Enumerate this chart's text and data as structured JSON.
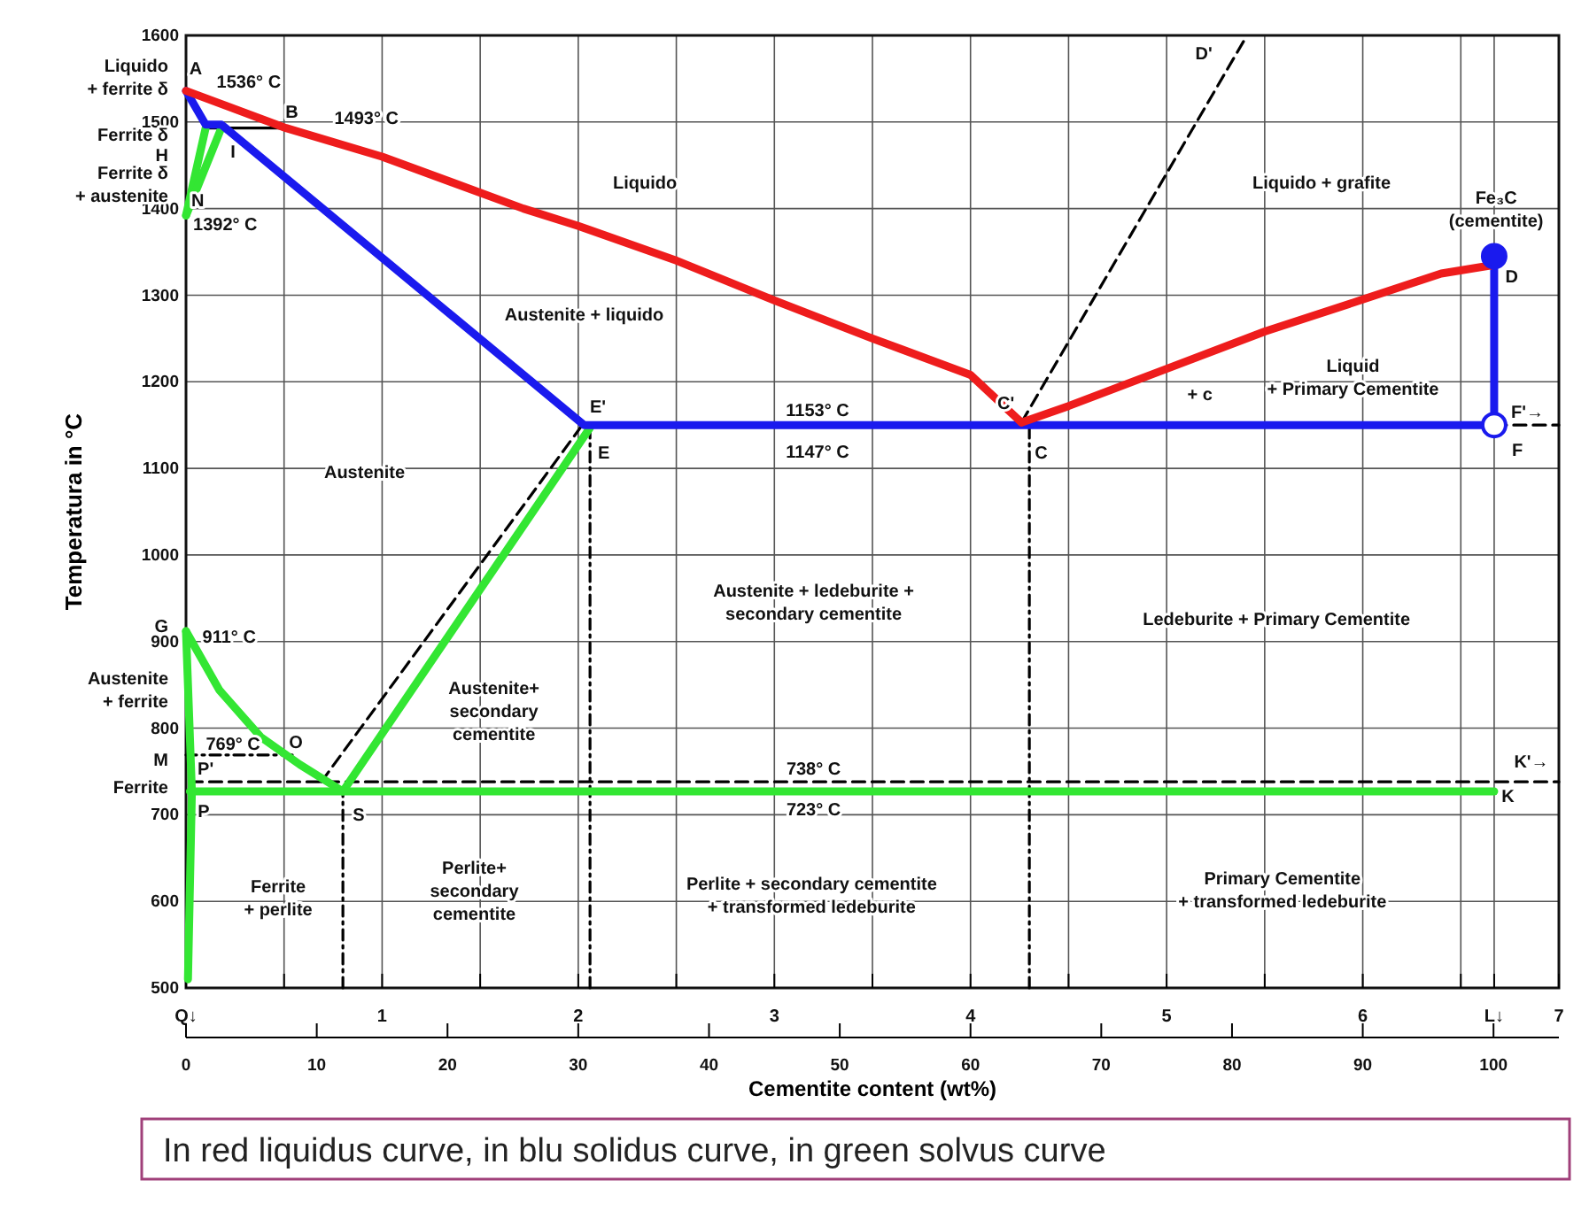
{
  "chart_data": {
    "type": "line",
    "ylabel": "Temperatura in °C",
    "x2label": "Cementite content (wt%)",
    "xlim": [
      0,
      7
    ],
    "ylim": [
      500,
      1600
    ],
    "xticks": [
      {
        "value": 0,
        "label": "Q↓"
      },
      {
        "value": 0.5,
        "label": null
      },
      1,
      {
        "value": 1.5,
        "label": null
      },
      2,
      {
        "value": 2.5,
        "label": null
      },
      3,
      {
        "value": 3.5,
        "label": null
      },
      4,
      {
        "value": 4.5,
        "label": null
      },
      5,
      {
        "value": 5.5,
        "label": null
      },
      6,
      {
        "value": 6.5,
        "label": null
      },
      {
        "value": 6.67,
        "label": "L↓"
      },
      7
    ],
    "yticks": [
      500,
      600,
      700,
      800,
      900,
      1000,
      1100,
      1200,
      1300,
      1400,
      1500,
      1600
    ],
    "x2lim": [
      0,
      105
    ],
    "x2ticks": [
      0,
      10,
      20,
      30,
      40,
      50,
      60,
      70,
      80,
      90,
      100
    ],
    "grid": true,
    "series": [
      {
        "color": "#000000",
        "line_style": "dashed",
        "x": [
          0.02,
          7
        ],
        "values": [
          738,
          738
        ]
      },
      {
        "color": "#000000",
        "line_style": "dashed",
        "x": [
          0.69,
          2.03
        ],
        "values": [
          738,
          1153
        ]
      },
      {
        "color": "#000000",
        "line_style": "dashed",
        "x": [
          4.26,
          5.41
        ],
        "values": [
          1153,
          1600
        ]
      },
      {
        "color": "#000000",
        "line_style": "dashed",
        "x": [
          6.67,
          7
        ],
        "values": [
          1150,
          1150
        ]
      },
      {
        "color": "#000000",
        "line_style": "dotted",
        "x": [
          0.8,
          0.8
        ],
        "values": [
          500,
          727
        ]
      },
      {
        "color": "#000000",
        "line_style": "dotted",
        "x": [
          2.06,
          2.06
        ],
        "values": [
          500,
          1147
        ]
      },
      {
        "color": "#000000",
        "line_style": "dotted",
        "x": [
          4.3,
          4.3
        ],
        "values": [
          500,
          1147
        ]
      },
      {
        "color": "#000000",
        "line_style": "dotted",
        "x": [
          0,
          0.55
        ],
        "values": [
          769,
          769
        ]
      },
      {
        "color": "#000000",
        "line_style": "solid",
        "x": [
          0.1,
          0.51
        ],
        "values": [
          1493,
          1493
        ]
      },
      {
        "color": "#33e633",
        "x": [
          0.1,
          0
        ],
        "values": [
          1493,
          1392
        ]
      },
      {
        "color": "#33e633",
        "x": [
          0.18,
          0
        ],
        "values": [
          1493,
          1392
        ]
      },
      {
        "color": "#33e633",
        "x": [
          0,
          0.17,
          0.38,
          0.58,
          0.8
        ],
        "values": [
          912,
          844,
          790,
          758,
          727
        ]
      },
      {
        "color": "#33e633",
        "x": [
          2.06,
          0.8
        ],
        "values": [
          1147,
          727
        ]
      },
      {
        "color": "#33e633",
        "x": [
          0.02,
          6.67
        ],
        "values": [
          727,
          727
        ]
      },
      {
        "color": "#33e633",
        "x": [
          0,
          0.03,
          0.01
        ],
        "values": [
          912,
          727,
          510
        ]
      },
      {
        "color": "#1a1aee",
        "x": [
          0,
          0.1,
          0.18,
          2.03,
          6.67,
          6.67
        ],
        "values": [
          1536,
          1497,
          1497,
          1150,
          1150,
          1345
        ]
      },
      {
        "color": "#ee1c1c",
        "x": [
          0,
          0.51,
          1,
          1.72,
          2,
          2.5,
          3,
          3.5,
          4,
          4.26
        ],
        "values": [
          1536,
          1493,
          1460,
          1400,
          1380,
          1340,
          1294,
          1250,
          1208,
          1153
        ]
      },
      {
        "color": "#ee1c1c",
        "x": [
          4.26,
          4.5,
          5,
          5.5,
          6,
          6.4,
          6.67
        ],
        "values": [
          1153,
          1172,
          1215,
          1258,
          1295,
          1325,
          1335
        ]
      },
      {
        "type": "scatter",
        "marker": "circle",
        "color": "#1a1aee",
        "x": [
          6.67
        ],
        "values": [
          1345
        ]
      },
      {
        "type": "scatter",
        "marker": "circle",
        "color": "#ffffff",
        "x": [
          6.67
        ],
        "values": [
          1150
        ]
      }
    ],
    "annotations": [
      "Liquido",
      "Liquido + grafite",
      "Fe₃C\n(cementite)",
      "Austenite + liquido",
      "Liquid\n+ Primary Cementite",
      "+ c",
      "Austenite",
      "1153° C",
      "1147° C",
      "C'",
      "C",
      "E'",
      "E",
      "F'→",
      {
        "text": "F",
        "x": 6.67,
        "y": 1150
      },
      "D",
      "D'",
      "A",
      "1536° C",
      "B",
      "1493° C",
      "I",
      "N",
      "1392° C",
      "911° C",
      "769° C",
      "O",
      "P'",
      "P",
      "S",
      "738° C",
      "723° C",
      "K'→",
      "K",
      "Austenite + ledeburite +\nsecondary cementite",
      "Ledeburite + Primary Cementite",
      "Austenite+\nsecondary\ncementite",
      "Perlite+\nsecondary\ncementite",
      "Ferrite\n+ perlite",
      "Perlite + secondary cementite\n+ transformed ledeburite",
      "Primary Cementite\n+ transformed ledeburite",
      "Liquido\n+ ferrite δ",
      "Ferrite δ",
      "H",
      "Ferrite δ\n+ austenite",
      "G",
      "Austenite\n+ ferrite",
      "M",
      "Ferrite",
      "In red liquidus curve, in blu solidus curve, in green solvus curve"
    ]
  }
}
